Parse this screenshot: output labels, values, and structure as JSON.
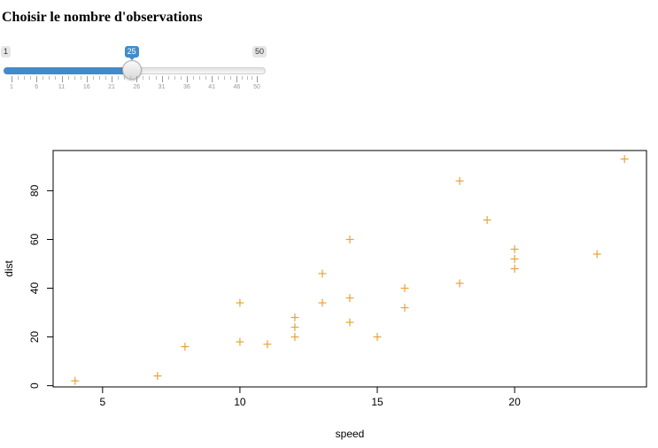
{
  "page": {
    "title": "Choisir le nombre d'observations"
  },
  "slider": {
    "min": 1,
    "max": 50,
    "value": 25,
    "step": 1,
    "min_label": "1",
    "max_label": "50",
    "value_label": "25",
    "tick_labels": [
      "1",
      "6",
      "11",
      "16",
      "21",
      "26",
      "31",
      "36",
      "41",
      "46",
      "50"
    ],
    "accent_color": "#428bca"
  },
  "chart_data": {
    "type": "scatter",
    "xlabel": "speed",
    "ylabel": "dist",
    "xlim": [
      3.2,
      24.8
    ],
    "ylim": [
      -0.5,
      96.5
    ],
    "xticks": [
      5,
      10,
      15,
      20
    ],
    "yticks": [
      0,
      20,
      40,
      60,
      80
    ],
    "grid": false,
    "point_marker": "plus",
    "point_color": "#e8a33a",
    "points": [
      {
        "x": 4,
        "y": 2
      },
      {
        "x": 7,
        "y": 4
      },
      {
        "x": 8,
        "y": 16
      },
      {
        "x": 10,
        "y": 18
      },
      {
        "x": 10,
        "y": 34
      },
      {
        "x": 11,
        "y": 17
      },
      {
        "x": 12,
        "y": 20
      },
      {
        "x": 12,
        "y": 24
      },
      {
        "x": 12,
        "y": 28
      },
      {
        "x": 13,
        "y": 34
      },
      {
        "x": 13,
        "y": 46
      },
      {
        "x": 14,
        "y": 26
      },
      {
        "x": 14,
        "y": 36
      },
      {
        "x": 14,
        "y": 60
      },
      {
        "x": 15,
        "y": 20
      },
      {
        "x": 16,
        "y": 32
      },
      {
        "x": 16,
        "y": 40
      },
      {
        "x": 18,
        "y": 42
      },
      {
        "x": 18,
        "y": 84
      },
      {
        "x": 19,
        "y": 68
      },
      {
        "x": 20,
        "y": 48
      },
      {
        "x": 20,
        "y": 52
      },
      {
        "x": 20,
        "y": 56
      },
      {
        "x": 23,
        "y": 54
      },
      {
        "x": 24,
        "y": 93
      }
    ]
  }
}
